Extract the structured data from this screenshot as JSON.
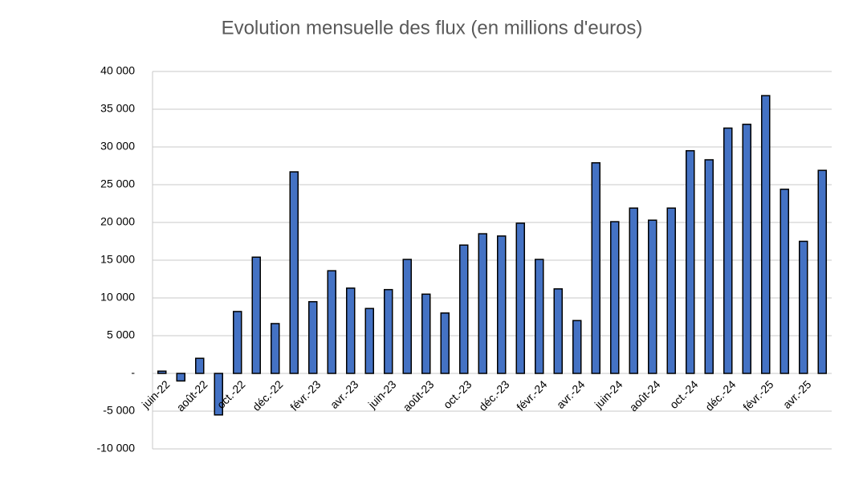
{
  "chart_data": {
    "type": "bar",
    "title": "Evolution mensuelle des flux (en millions d'euros)",
    "categories": [
      "juin-22",
      null,
      "août-22",
      null,
      "oct.-22",
      null,
      "déc.-22",
      null,
      "févr.-23",
      null,
      "avr.-23",
      null,
      "juin-23",
      null,
      "août-23",
      null,
      "oct.-23",
      null,
      "déc.-23",
      null,
      "févr.-24",
      null,
      "avr.-24",
      null,
      "juin-24",
      null,
      "août-24",
      null,
      "oct.-24",
      null,
      "déc.-24",
      null,
      "févr.-25",
      null,
      "avr.-25",
      null
    ],
    "values": [
      300,
      -1000,
      2000,
      -5500,
      8200,
      15400,
      6600,
      26700,
      9500,
      13600,
      11300,
      8600,
      11100,
      15100,
      10500,
      8000,
      17000,
      18500,
      18200,
      19900,
      15100,
      11200,
      7000,
      27900,
      20100,
      21900,
      20300,
      21900,
      29500,
      28300,
      32500,
      33000,
      36800,
      24400,
      17500,
      26900
    ],
    "color": "#4472c4",
    "ylim": [
      -10000,
      40000
    ],
    "yticks": [
      {
        "value": -10000,
        "label": "-10 000"
      },
      {
        "value": -5000,
        "label": "-5 000"
      },
      {
        "value": 0,
        "label": "-"
      },
      {
        "value": 5000,
        "label": "5 000"
      },
      {
        "value": 10000,
        "label": "10 000"
      },
      {
        "value": 15000,
        "label": "15 000"
      },
      {
        "value": 20000,
        "label": "20 000"
      },
      {
        "value": 25000,
        "label": "25 000"
      },
      {
        "value": 30000,
        "label": "30 000"
      },
      {
        "value": 35000,
        "label": "35 000"
      },
      {
        "value": 40000,
        "label": "40 000"
      }
    ],
    "grid": true
  }
}
